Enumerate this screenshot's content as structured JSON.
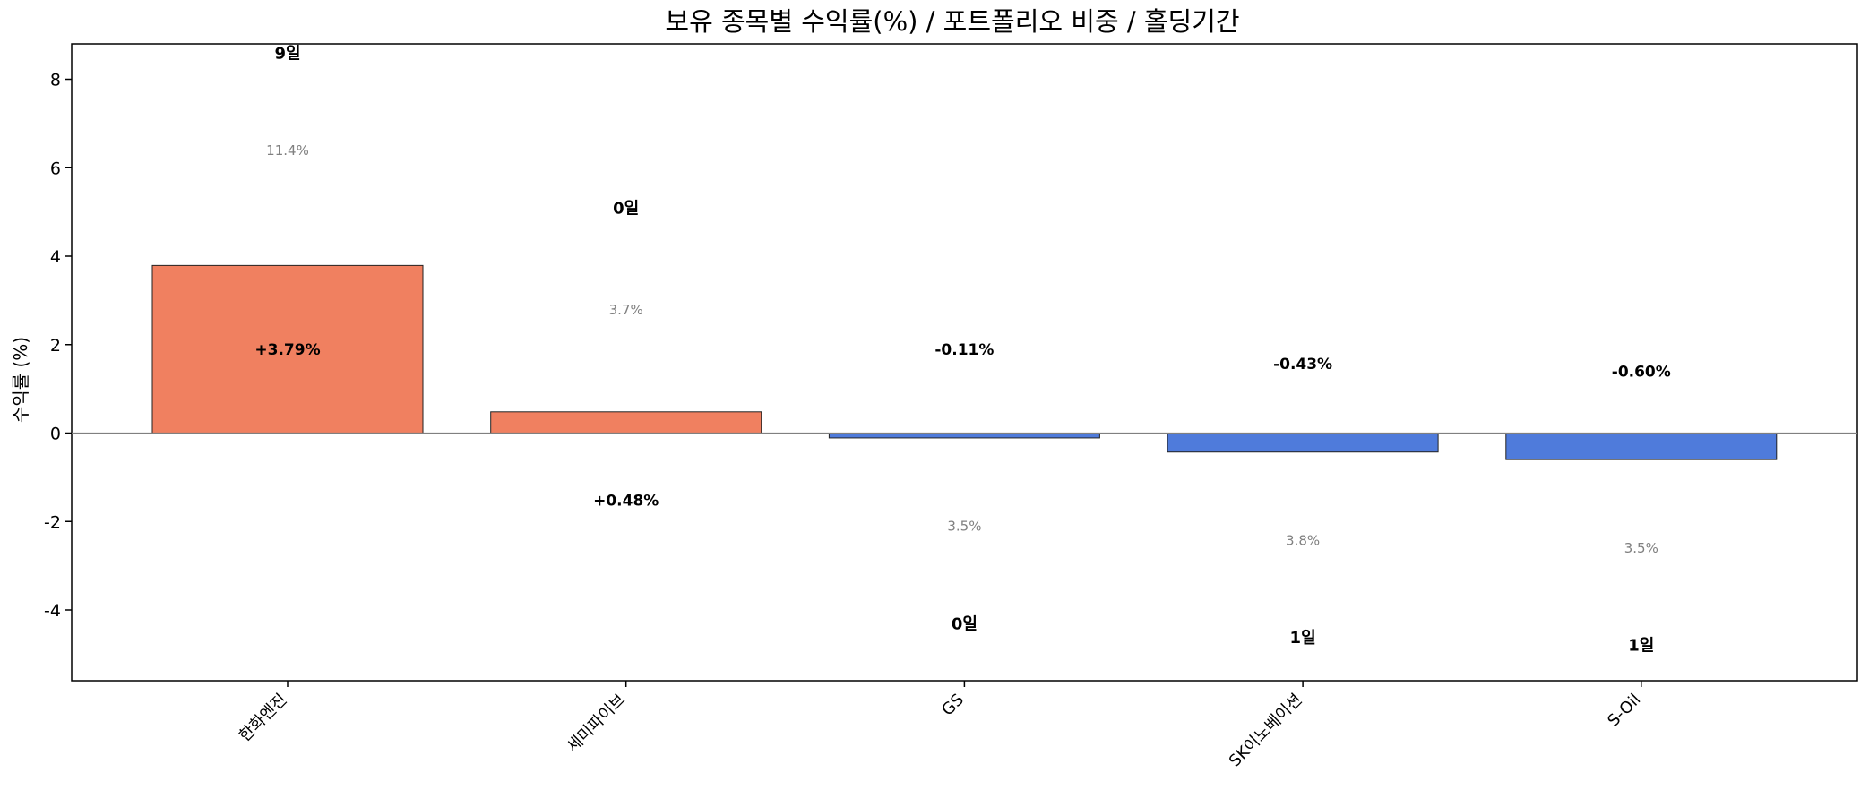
{
  "chart_data": {
    "type": "bar",
    "title": "보유 종목별 수익률(%) / 포트폴리오 비중 / 홀딩기간",
    "xlabel": "",
    "ylabel": "수익률 (%)",
    "ylim": [
      -5.6,
      8.8
    ],
    "yticks": [
      8,
      6,
      4,
      2,
      0,
      -2,
      -4
    ],
    "ytick_labels": [
      "8",
      "6",
      "4",
      "2",
      "0",
      "-2",
      "-4"
    ],
    "categories": [
      "한화엔진",
      "세미파이브",
      "GS",
      "SK이노베이션",
      "S-Oil"
    ],
    "values": [
      3.79,
      0.48,
      -0.11,
      -0.43,
      -0.6
    ],
    "value_labels": [
      "+3.79%",
      "+0.48%",
      "-0.11%",
      "-0.43%",
      "-0.60%"
    ],
    "weights": [
      "11.4%",
      "3.7%",
      "3.5%",
      "3.8%",
      "3.5%"
    ],
    "holding_days": [
      "9일",
      "0일",
      "0일",
      "1일",
      "1일"
    ],
    "colors": {
      "positive": "#f08060",
      "negative": "#4f7bdb",
      "zero_line": "#808080",
      "weight_text": "#808080"
    },
    "grid": false,
    "legend": "none"
  }
}
